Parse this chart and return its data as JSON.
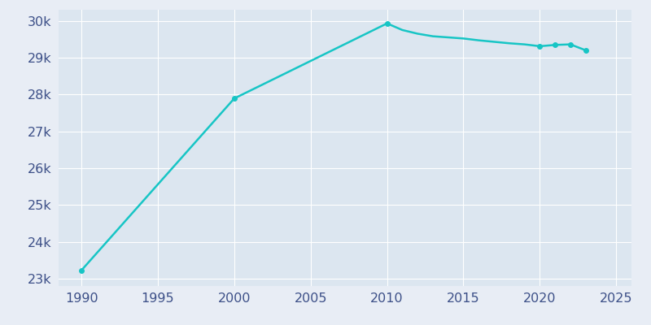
{
  "years": [
    1990,
    2000,
    2010,
    2011,
    2012,
    2013,
    2014,
    2015,
    2016,
    2017,
    2018,
    2019,
    2020,
    2021,
    2022,
    2023
  ],
  "population": [
    23228,
    27892,
    29929,
    29750,
    29650,
    29580,
    29550,
    29520,
    29470,
    29430,
    29390,
    29360,
    29310,
    29345,
    29360,
    29200
  ],
  "line_color": "#17c5c5",
  "marker_years": [
    1990,
    2000,
    2010,
    2020,
    2021,
    2022,
    2023
  ],
  "marker_color": "#17c5c5",
  "marker_size": 4,
  "fig_bg_color": "#e8edf5",
  "plot_bg_color": "#dce6f0",
  "grid_color": "#ffffff",
  "xlim": [
    1988.5,
    2026
  ],
  "ylim": [
    22800,
    30300
  ],
  "xticks": [
    1990,
    1995,
    2000,
    2005,
    2010,
    2015,
    2020,
    2025
  ],
  "yticks": [
    23000,
    24000,
    25000,
    26000,
    27000,
    28000,
    29000,
    30000
  ],
  "tick_color": "#3d5088",
  "tick_fontsize": 11.5,
  "linewidth": 1.8
}
